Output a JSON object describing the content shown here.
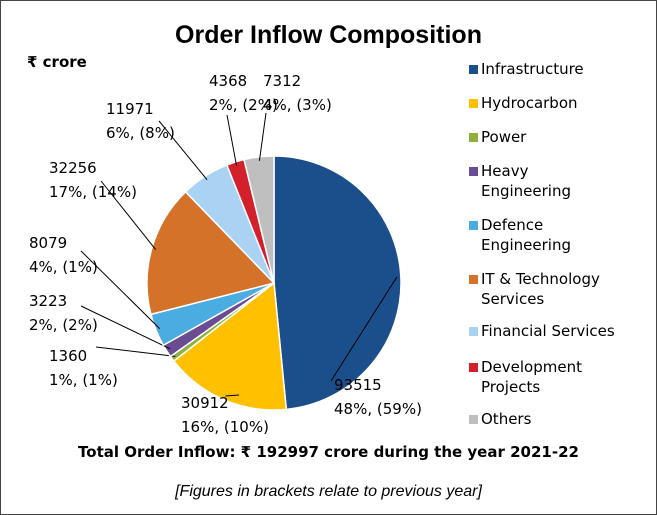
{
  "chart_data": {
    "type": "pie",
    "title": "Order Inflow Composition",
    "subtitle": "₹ crore",
    "categories": [
      "Infrastructure",
      "Hydrocarbon",
      "Power",
      "Heavy Engineering",
      "Defence Engineering",
      "IT & Technology Services",
      "Financial Services",
      "Development Projects",
      "Others"
    ],
    "values": [
      93515,
      30912,
      1360,
      3223,
      8079,
      32256,
      11971,
      4368,
      7312
    ],
    "share_labels": [
      "48%, (59%)",
      "16%, (10%)",
      "1%, (1%)",
      "2%, (2%)",
      "4%, (1%)",
      "17%, (14%)",
      "6%, (8%)",
      "2%, (2%)",
      "4%, (3%)"
    ],
    "colors": [
      "#1b4f8c",
      "#ffc000",
      "#8fb03e",
      "#6a4c93",
      "#4aace0",
      "#d4722a",
      "#aad2f2",
      "#d3202a",
      "#bfbfbf"
    ],
    "legend": "right",
    "footer": "Total Order Inflow: ₹ 192997 crore during the year 2021-22",
    "note": "[Figures in brackets relate to previous year]"
  }
}
